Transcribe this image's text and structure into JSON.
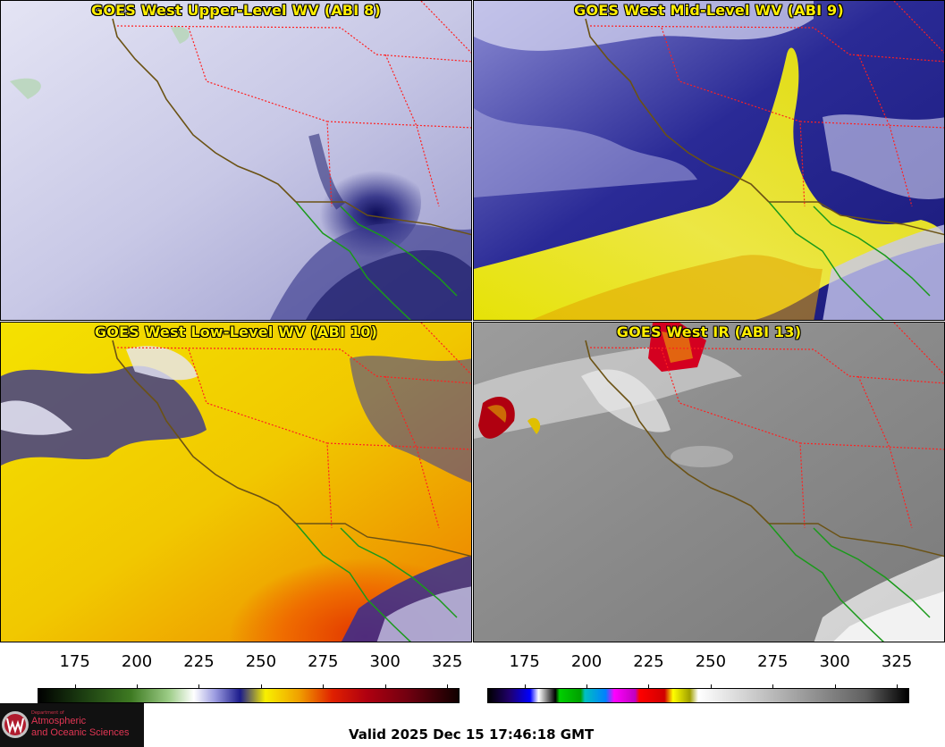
{
  "panels": {
    "upper": {
      "title": "GOES West Upper-Level WV (ABI 8)"
    },
    "mid": {
      "title": "GOES West Mid-Level WV (ABI 9)"
    },
    "low": {
      "title": "GOES West Low-Level WV (ABI 10)"
    },
    "ir": {
      "title": "GOES West IR (ABI 13)"
    }
  },
  "colorbars": {
    "wv": {
      "ticks": [
        "175",
        "200",
        "225",
        "250",
        "275",
        "300",
        "325"
      ],
      "range": [
        160,
        330
      ]
    },
    "ir": {
      "ticks": [
        "175",
        "200",
        "225",
        "250",
        "275",
        "300",
        "325"
      ],
      "range": [
        160,
        330
      ]
    }
  },
  "logo": {
    "dept": "Department of",
    "line1": "Atmospheric",
    "line2": "and Oceanic Sciences",
    "seal_letter": "W"
  },
  "valid_time": "Valid 2025 Dec 15 17:46:18 GMT",
  "colors": {
    "border": "#ff2020",
    "coast": "#6b5214",
    "mexico_coast": "#1a9a1a",
    "title": "#ffee00"
  }
}
